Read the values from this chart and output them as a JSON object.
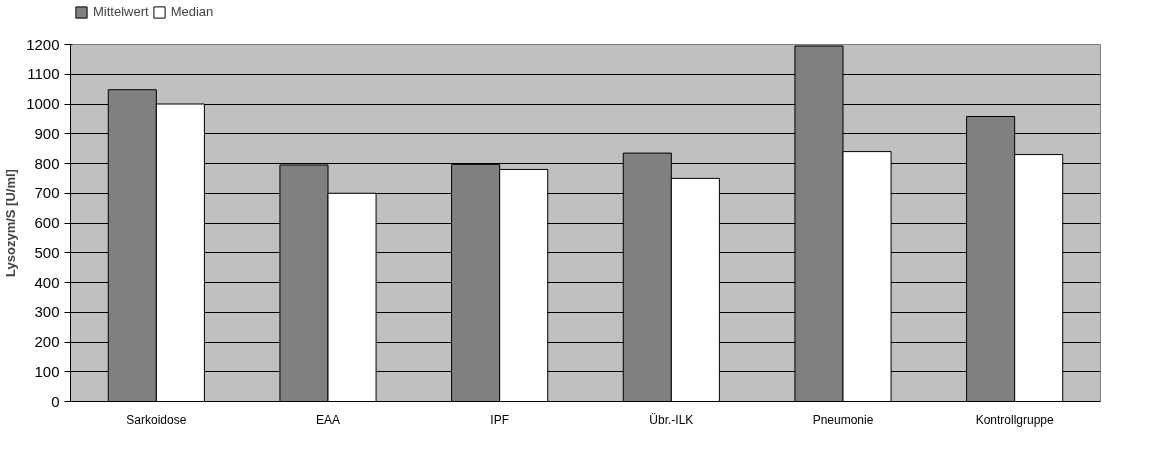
{
  "chart_data": {
    "type": "bar",
    "ylabel": "Lysozym/S [U/ml]",
    "categories": [
      "Sarkoidose",
      "EAA",
      "IPF",
      "Übr.-ILK",
      "Pneumonie",
      "Kontrollgruppe"
    ],
    "series": [
      {
        "name": "Mittelwert",
        "color": "#808080",
        "values": [
          1048,
          795,
          797,
          835,
          1195,
          958
        ]
      },
      {
        "name": "Median",
        "color": "#ffffff",
        "values": [
          1000,
          700,
          780,
          750,
          840,
          830
        ]
      }
    ],
    "ylim": [
      0,
      1200
    ],
    "yticks": [
      0,
      100,
      200,
      300,
      400,
      500,
      600,
      700,
      800,
      900,
      1000,
      1100,
      1200
    ],
    "grid": "y",
    "legend": "top left"
  }
}
